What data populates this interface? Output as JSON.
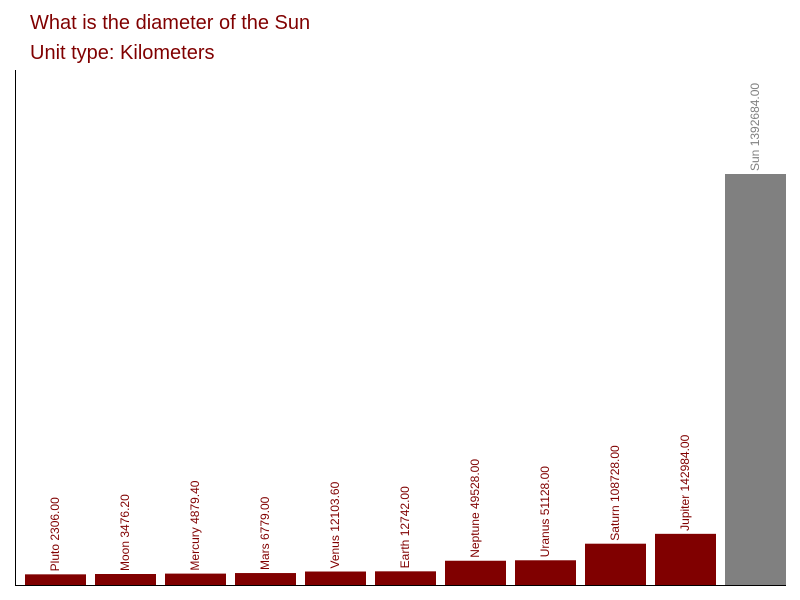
{
  "chart_data": {
    "type": "bar",
    "title": "What is the diameter of the Sun",
    "subtitle": "Unit type: Kilometers",
    "categories": [
      "Pluto",
      "Moon",
      "Mercury",
      "Mars",
      "Venus",
      "Earth",
      "Neptune",
      "Uranus",
      "Saturn",
      "Jupiter",
      "Sun"
    ],
    "values": [
      2306,
      3476.2,
      4879.4,
      6779,
      12103.6,
      12742,
      49528,
      51128,
      108728,
      142984,
      1392684
    ],
    "value_labels": [
      "2306.00",
      "3476.20",
      "4879.40",
      "6779.00",
      "12103.60",
      "12742.00",
      "49528.00",
      "51128.00",
      "108728.00",
      "142984.00",
      "1392684.00"
    ],
    "colors": [
      "#800000",
      "#800000",
      "#800000",
      "#800000",
      "#800000",
      "#800000",
      "#800000",
      "#800000",
      "#800000",
      "#800000",
      "#808080"
    ]
  }
}
